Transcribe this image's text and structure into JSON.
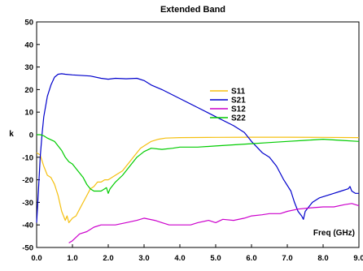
{
  "chart_data": {
    "type": "line",
    "title": "Extended Band",
    "xlabel": "Freq (GHz)",
    "ylabel": "k",
    "xlim": [
      0,
      9
    ],
    "ylim": [
      -50,
      50
    ],
    "x_ticks": [
      "0.0",
      "1.0",
      "2.0",
      "3.0",
      "4.0",
      "5.0",
      "6.0",
      "7.0",
      "8.0",
      "9.0"
    ],
    "y_ticks": [
      "50",
      "40",
      "30",
      "20",
      "10",
      "0",
      "-10",
      "-20",
      "-30",
      "-40",
      "-50"
    ],
    "legend_position": "center-right",
    "grid": false,
    "series": [
      {
        "name": "S11",
        "color": "#f5c010",
        "points": [
          [
            0.0,
            -8
          ],
          [
            0.1,
            -9
          ],
          [
            0.2,
            -14
          ],
          [
            0.3,
            -18
          ],
          [
            0.4,
            -19
          ],
          [
            0.5,
            -22
          ],
          [
            0.6,
            -27
          ],
          [
            0.7,
            -34
          ],
          [
            0.8,
            -38
          ],
          [
            0.85,
            -36
          ],
          [
            0.9,
            -39
          ],
          [
            1.0,
            -37
          ],
          [
            1.1,
            -36
          ],
          [
            1.2,
            -33
          ],
          [
            1.3,
            -30
          ],
          [
            1.4,
            -27
          ],
          [
            1.5,
            -24
          ],
          [
            1.6,
            -23
          ],
          [
            1.7,
            -21
          ],
          [
            1.8,
            -21
          ],
          [
            1.9,
            -20
          ],
          [
            2.0,
            -20
          ],
          [
            2.1,
            -19
          ],
          [
            2.2,
            -18
          ],
          [
            2.3,
            -17
          ],
          [
            2.4,
            -16
          ],
          [
            2.5,
            -14
          ],
          [
            2.6,
            -12
          ],
          [
            2.7,
            -10
          ],
          [
            2.8,
            -8
          ],
          [
            2.9,
            -6
          ],
          [
            3.0,
            -5
          ],
          [
            3.2,
            -3
          ],
          [
            3.4,
            -2
          ],
          [
            3.6,
            -1.5
          ],
          [
            4.0,
            -1.3
          ],
          [
            5.0,
            -1.2
          ],
          [
            6.0,
            -1.1
          ],
          [
            7.0,
            -1.1
          ],
          [
            8.0,
            -1.2
          ],
          [
            9.0,
            -1.3
          ]
        ]
      },
      {
        "name": "S21",
        "color": "#0000cc",
        "points": [
          [
            0.0,
            -39
          ],
          [
            0.05,
            -25
          ],
          [
            0.1,
            -10
          ],
          [
            0.15,
            0
          ],
          [
            0.2,
            8
          ],
          [
            0.3,
            17
          ],
          [
            0.4,
            22
          ],
          [
            0.5,
            25.5
          ],
          [
            0.6,
            26.8
          ],
          [
            0.7,
            27
          ],
          [
            0.8,
            26.8
          ],
          [
            1.0,
            26.5
          ],
          [
            1.5,
            26
          ],
          [
            1.8,
            25
          ],
          [
            2.0,
            24.6
          ],
          [
            2.2,
            25
          ],
          [
            2.5,
            24.8
          ],
          [
            2.8,
            25
          ],
          [
            3.0,
            24
          ],
          [
            3.2,
            22
          ],
          [
            3.5,
            20
          ],
          [
            4.0,
            16
          ],
          [
            4.5,
            12
          ],
          [
            5.0,
            8
          ],
          [
            5.5,
            4
          ],
          [
            5.8,
            1
          ],
          [
            6.0,
            -3
          ],
          [
            6.3,
            -8
          ],
          [
            6.5,
            -10
          ],
          [
            6.7,
            -14
          ],
          [
            6.9,
            -20
          ],
          [
            7.1,
            -25
          ],
          [
            7.2,
            -30
          ],
          [
            7.3,
            -34
          ],
          [
            7.4,
            -36
          ],
          [
            7.45,
            -37.5
          ],
          [
            7.5,
            -34
          ],
          [
            7.7,
            -30
          ],
          [
            7.9,
            -28
          ],
          [
            8.1,
            -27
          ],
          [
            8.3,
            -26
          ],
          [
            8.5,
            -25
          ],
          [
            8.7,
            -24
          ],
          [
            8.75,
            -23
          ],
          [
            8.8,
            -25
          ],
          [
            8.9,
            -26
          ],
          [
            9.0,
            -26
          ]
        ]
      },
      {
        "name": "S12",
        "color": "#cc00cc",
        "points": [
          [
            0.9,
            -48
          ],
          [
            1.0,
            -47
          ],
          [
            1.2,
            -44
          ],
          [
            1.4,
            -43
          ],
          [
            1.6,
            -41
          ],
          [
            1.8,
            -40
          ],
          [
            2.0,
            -40
          ],
          [
            2.2,
            -40
          ],
          [
            2.5,
            -39
          ],
          [
            2.8,
            -38
          ],
          [
            3.0,
            -37
          ],
          [
            3.3,
            -38
          ],
          [
            3.5,
            -39
          ],
          [
            3.7,
            -40
          ],
          [
            4.0,
            -40
          ],
          [
            4.3,
            -40
          ],
          [
            4.5,
            -39
          ],
          [
            4.8,
            -38
          ],
          [
            5.0,
            -39
          ],
          [
            5.2,
            -37.5
          ],
          [
            5.5,
            -38
          ],
          [
            5.8,
            -37
          ],
          [
            6.0,
            -36
          ],
          [
            6.3,
            -35.5
          ],
          [
            6.5,
            -35
          ],
          [
            6.8,
            -35
          ],
          [
            7.0,
            -34
          ],
          [
            7.3,
            -33
          ],
          [
            7.6,
            -32.5
          ],
          [
            8.0,
            -32
          ],
          [
            8.3,
            -32
          ],
          [
            8.6,
            -31
          ],
          [
            8.8,
            -30.5
          ],
          [
            9.0,
            -31.5
          ]
        ]
      },
      {
        "name": "S22",
        "color": "#00cc00",
        "points": [
          [
            0.0,
            0
          ],
          [
            0.1,
            0
          ],
          [
            0.2,
            -0.5
          ],
          [
            0.3,
            -1.5
          ],
          [
            0.5,
            -3
          ],
          [
            0.6,
            -5
          ],
          [
            0.7,
            -7
          ],
          [
            0.8,
            -10
          ],
          [
            0.9,
            -12
          ],
          [
            1.0,
            -13
          ],
          [
            1.1,
            -15
          ],
          [
            1.2,
            -17
          ],
          [
            1.3,
            -19
          ],
          [
            1.4,
            -22
          ],
          [
            1.5,
            -24
          ],
          [
            1.6,
            -25
          ],
          [
            1.7,
            -25
          ],
          [
            1.8,
            -25
          ],
          [
            1.9,
            -24
          ],
          [
            1.95,
            -23.5
          ],
          [
            2.0,
            -26
          ],
          [
            2.05,
            -24
          ],
          [
            2.2,
            -21
          ],
          [
            2.4,
            -18
          ],
          [
            2.6,
            -14
          ],
          [
            2.8,
            -10
          ],
          [
            3.0,
            -7.5
          ],
          [
            3.2,
            -6
          ],
          [
            3.5,
            -6.5
          ],
          [
            3.8,
            -6
          ],
          [
            4.0,
            -5.5
          ],
          [
            4.5,
            -5.5
          ],
          [
            5.0,
            -5
          ],
          [
            5.5,
            -4.5
          ],
          [
            6.0,
            -4
          ],
          [
            6.5,
            -3.5
          ],
          [
            7.0,
            -3
          ],
          [
            7.5,
            -2.5
          ],
          [
            8.0,
            -2
          ],
          [
            8.5,
            -2.5
          ],
          [
            9.0,
            -3
          ]
        ]
      }
    ]
  }
}
